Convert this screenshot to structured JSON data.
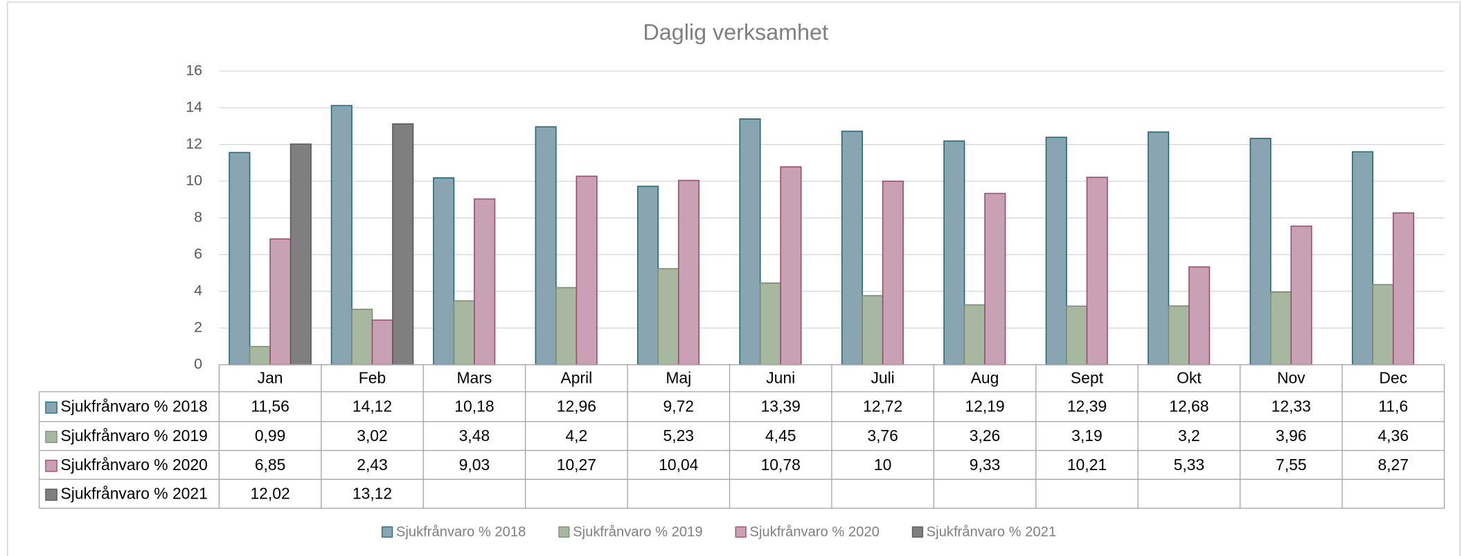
{
  "chart_data": {
    "type": "bar",
    "title": "Daglig verksamhet",
    "categories": [
      "Jan",
      "Feb",
      "Mars",
      "April",
      "Maj",
      "Juni",
      "Juli",
      "Aug",
      "Sept",
      "Okt",
      "Nov",
      "Dec"
    ],
    "series": [
      {
        "name": "Sjukfrånvaro % 2018",
        "color": "#8aa5b2",
        "values": [
          11.56,
          14.12,
          10.18,
          12.96,
          9.72,
          13.39,
          12.72,
          12.19,
          12.39,
          12.68,
          12.33,
          11.6
        ],
        "value_labels": [
          "11,56",
          "14,12",
          "10,18",
          "12,96",
          "9,72",
          "13,39",
          "12,72",
          "12,19",
          "12,39",
          "12,68",
          "12,33",
          "11,6"
        ]
      },
      {
        "name": "Sjukfrånvaro % 2019",
        "color": "#a8b8a0",
        "values": [
          0.99,
          3.02,
          3.48,
          4.2,
          5.23,
          4.45,
          3.76,
          3.26,
          3.19,
          3.2,
          3.96,
          4.36
        ],
        "value_labels": [
          "0,99",
          "3,02",
          "3,48",
          "4,2",
          "5,23",
          "4,45",
          "3,76",
          "3,26",
          "3,19",
          "3,2",
          "3,96",
          "4,36"
        ]
      },
      {
        "name": "Sjukfrånvaro % 2020",
        "color": "#c9a1b4",
        "values": [
          6.85,
          2.43,
          9.03,
          10.27,
          10.04,
          10.78,
          10,
          9.33,
          10.21,
          5.33,
          7.55,
          8.27
        ],
        "value_labels": [
          "6,85",
          "2,43",
          "9,03",
          "10,27",
          "10,04",
          "10,78",
          "10",
          "9,33",
          "10,21",
          "5,33",
          "7,55",
          "8,27"
        ]
      },
      {
        "name": "Sjukfrånvaro % 2021",
        "color": "#7f7f7f",
        "values": [
          12.02,
          13.12,
          null,
          null,
          null,
          null,
          null,
          null,
          null,
          null,
          null,
          null
        ],
        "value_labels": [
          "12,02",
          "13,12",
          null,
          null,
          null,
          null,
          null,
          null,
          null,
          null,
          null,
          null
        ]
      }
    ],
    "ylim": [
      0,
      16
    ],
    "yticks": [
      0,
      2,
      4,
      6,
      8,
      10,
      12,
      14,
      16
    ],
    "grid": true,
    "legend": "bottom"
  }
}
